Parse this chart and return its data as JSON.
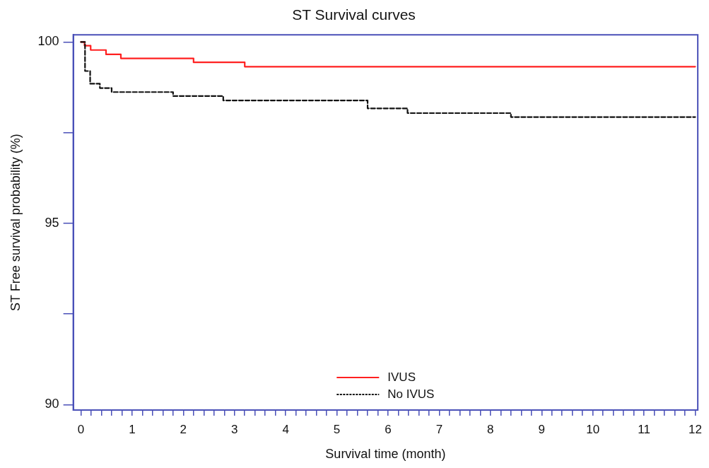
{
  "chart_data": {
    "type": "step",
    "title": "ST Survival curves",
    "xlabel": "Survival time (month)",
    "ylabel": "ST Free survival probability (%)",
    "xlim": [
      -0.15,
      12.05
    ],
    "ylim": [
      89.85,
      100.2
    ],
    "xticks": [
      0,
      {
        "value": 0.2,
        "label": null
      },
      {
        "value": 0.4,
        "label": null
      },
      {
        "value": 0.6,
        "label": null
      },
      {
        "value": 0.8,
        "label": null
      },
      1,
      {
        "value": 1.2,
        "label": null
      },
      {
        "value": 1.4,
        "label": null
      },
      {
        "value": 1.6,
        "label": null
      },
      {
        "value": 1.8,
        "label": null
      },
      2,
      {
        "value": 2.2,
        "label": null
      },
      {
        "value": 2.4,
        "label": null
      },
      {
        "value": 2.6,
        "label": null
      },
      {
        "value": 2.8,
        "label": null
      },
      3,
      {
        "value": 3.2,
        "label": null
      },
      {
        "value": 3.4,
        "label": null
      },
      {
        "value": 3.6,
        "label": null
      },
      {
        "value": 3.8,
        "label": null
      },
      4,
      {
        "value": 4.2,
        "label": null
      },
      {
        "value": 4.4,
        "label": null
      },
      {
        "value": 4.6,
        "label": null
      },
      {
        "value": 4.8,
        "label": null
      },
      5,
      {
        "value": 5.2,
        "label": null
      },
      {
        "value": 5.4,
        "label": null
      },
      {
        "value": 5.6,
        "label": null
      },
      {
        "value": 5.8,
        "label": null
      },
      6,
      {
        "value": 6.2,
        "label": null
      },
      {
        "value": 6.4,
        "label": null
      },
      {
        "value": 6.6,
        "label": null
      },
      {
        "value": 6.8,
        "label": null
      },
      7,
      {
        "value": 7.2,
        "label": null
      },
      {
        "value": 7.4,
        "label": null
      },
      {
        "value": 7.6,
        "label": null
      },
      {
        "value": 7.8,
        "label": null
      },
      8,
      {
        "value": 8.2,
        "label": null
      },
      {
        "value": 8.4,
        "label": null
      },
      {
        "value": 8.6,
        "label": null
      },
      {
        "value": 8.8,
        "label": null
      },
      9,
      {
        "value": 9.2,
        "label": null
      },
      {
        "value": 9.4,
        "label": null
      },
      {
        "value": 9.6,
        "label": null
      },
      {
        "value": 9.8,
        "label": null
      },
      10,
      {
        "value": 10.2,
        "label": null
      },
      {
        "value": 10.4,
        "label": null
      },
      {
        "value": 10.6,
        "label": null
      },
      {
        "value": 10.8,
        "label": null
      },
      11,
      {
        "value": 11.2,
        "label": null
      },
      {
        "value": 11.4,
        "label": null
      },
      {
        "value": 11.6,
        "label": null
      },
      {
        "value": 11.8,
        "label": null
      },
      12
    ],
    "yticks": [
      90,
      {
        "value": 92.5,
        "label": null
      },
      95,
      {
        "value": 97.5,
        "label": null
      },
      100
    ],
    "grid": false,
    "legend": "bottom",
    "marker": "none",
    "series": [
      {
        "name": "IVUS",
        "color": "#ff2020",
        "line_style": "solid",
        "x": [
          0,
          0.07,
          0.19,
          0.49,
          0.78,
          2.2,
          3.2,
          12
        ],
        "values": [
          100,
          99.9,
          99.78,
          99.66,
          99.55,
          99.44,
          99.32,
          99.32
        ]
      },
      {
        "name": "No IVUS",
        "color": "#111111",
        "line_style": "dashed",
        "x": [
          0,
          0.08,
          0.18,
          0.37,
          0.6,
          1.8,
          2.78,
          5.6,
          6.38,
          8.4,
          12
        ],
        "values": [
          100,
          99.2,
          98.85,
          98.73,
          98.62,
          98.51,
          98.39,
          98.17,
          98.04,
          97.93,
          97.93
        ]
      }
    ]
  }
}
